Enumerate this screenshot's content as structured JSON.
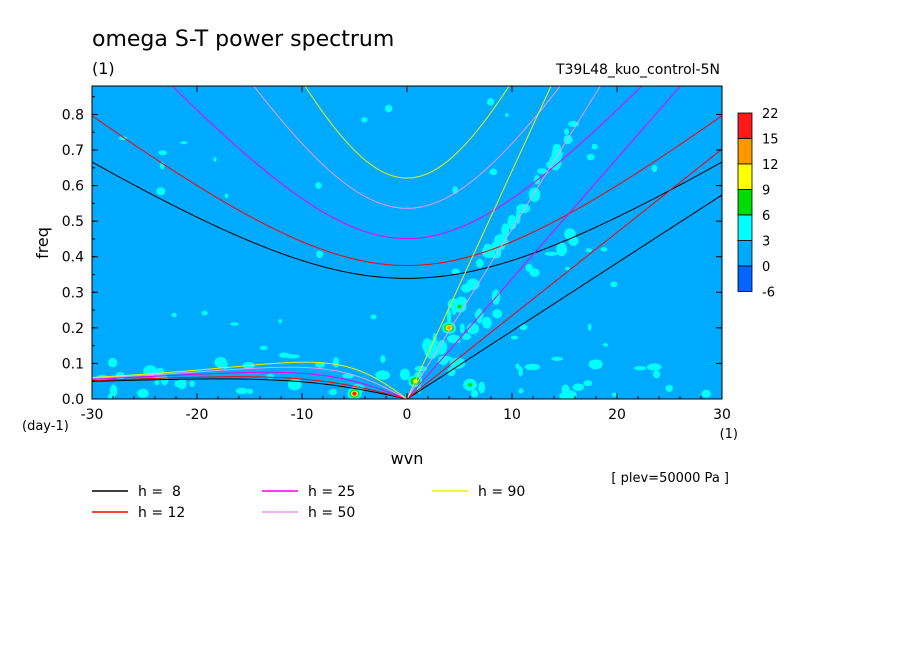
{
  "chart_data": {
    "type": "heatmap",
    "title": "omega S-T power spectrum",
    "subtitle": "(1)",
    "run_label": "T39L48_kuo_control-5N",
    "xlabel": "wvn",
    "xunit": "(1)",
    "ylabel": "freq",
    "yunit": "(day-1)",
    "level_note": "[ plev=50000 Pa ]",
    "xlim": [
      -30,
      30
    ],
    "ylim": [
      0,
      0.88
    ],
    "x_ticks": [
      "-30",
      "-20",
      "-10",
      "0",
      "10",
      "20",
      "30"
    ],
    "y_ticks": [
      "0.0",
      "0.1",
      "0.2",
      "0.3",
      "0.4",
      "0.5",
      "0.6",
      "0.7",
      "0.8"
    ],
    "x_tick_values": [
      -30,
      -20,
      -10,
      0,
      10,
      20,
      30
    ],
    "y_tick_values": [
      0,
      0.1,
      0.2,
      0.3,
      0.4,
      0.5,
      0.6,
      0.7,
      0.8
    ],
    "colorbar": {
      "labels": [
        "22",
        "15",
        "12",
        "9",
        "6",
        "3",
        "0",
        "-6"
      ],
      "colors": [
        "#ff1a1a",
        "#ff9900",
        "#ffff00",
        "#00dd00",
        "#00ffff",
        "#00aaff",
        "#0066ff"
      ]
    },
    "background_color": "#00aaff",
    "contour_color": "#00ffff",
    "peaks": [
      {
        "x": -5,
        "y": 0.015,
        "level": 22
      },
      {
        "x": 4,
        "y": 0.2,
        "level": 12
      },
      {
        "x": 5,
        "y": 0.26,
        "level": 6
      },
      {
        "x": 6,
        "y": 0.04,
        "level": 6
      },
      {
        "x": 0.8,
        "y": 0.05,
        "level": 9
      }
    ],
    "dispersion_curves": [
      {
        "h": "8",
        "color": "#000000"
      },
      {
        "h": "12",
        "color": "#ff0000"
      },
      {
        "h": "25",
        "color": "#ee00ee"
      },
      {
        "h": "50",
        "color": "#ee99ee"
      },
      {
        "h": "90",
        "color": "#eeee00"
      }
    ],
    "legend_labels": [
      "h =  8",
      "h = 12",
      "h = 25",
      "h = 50",
      "h = 90"
    ]
  }
}
